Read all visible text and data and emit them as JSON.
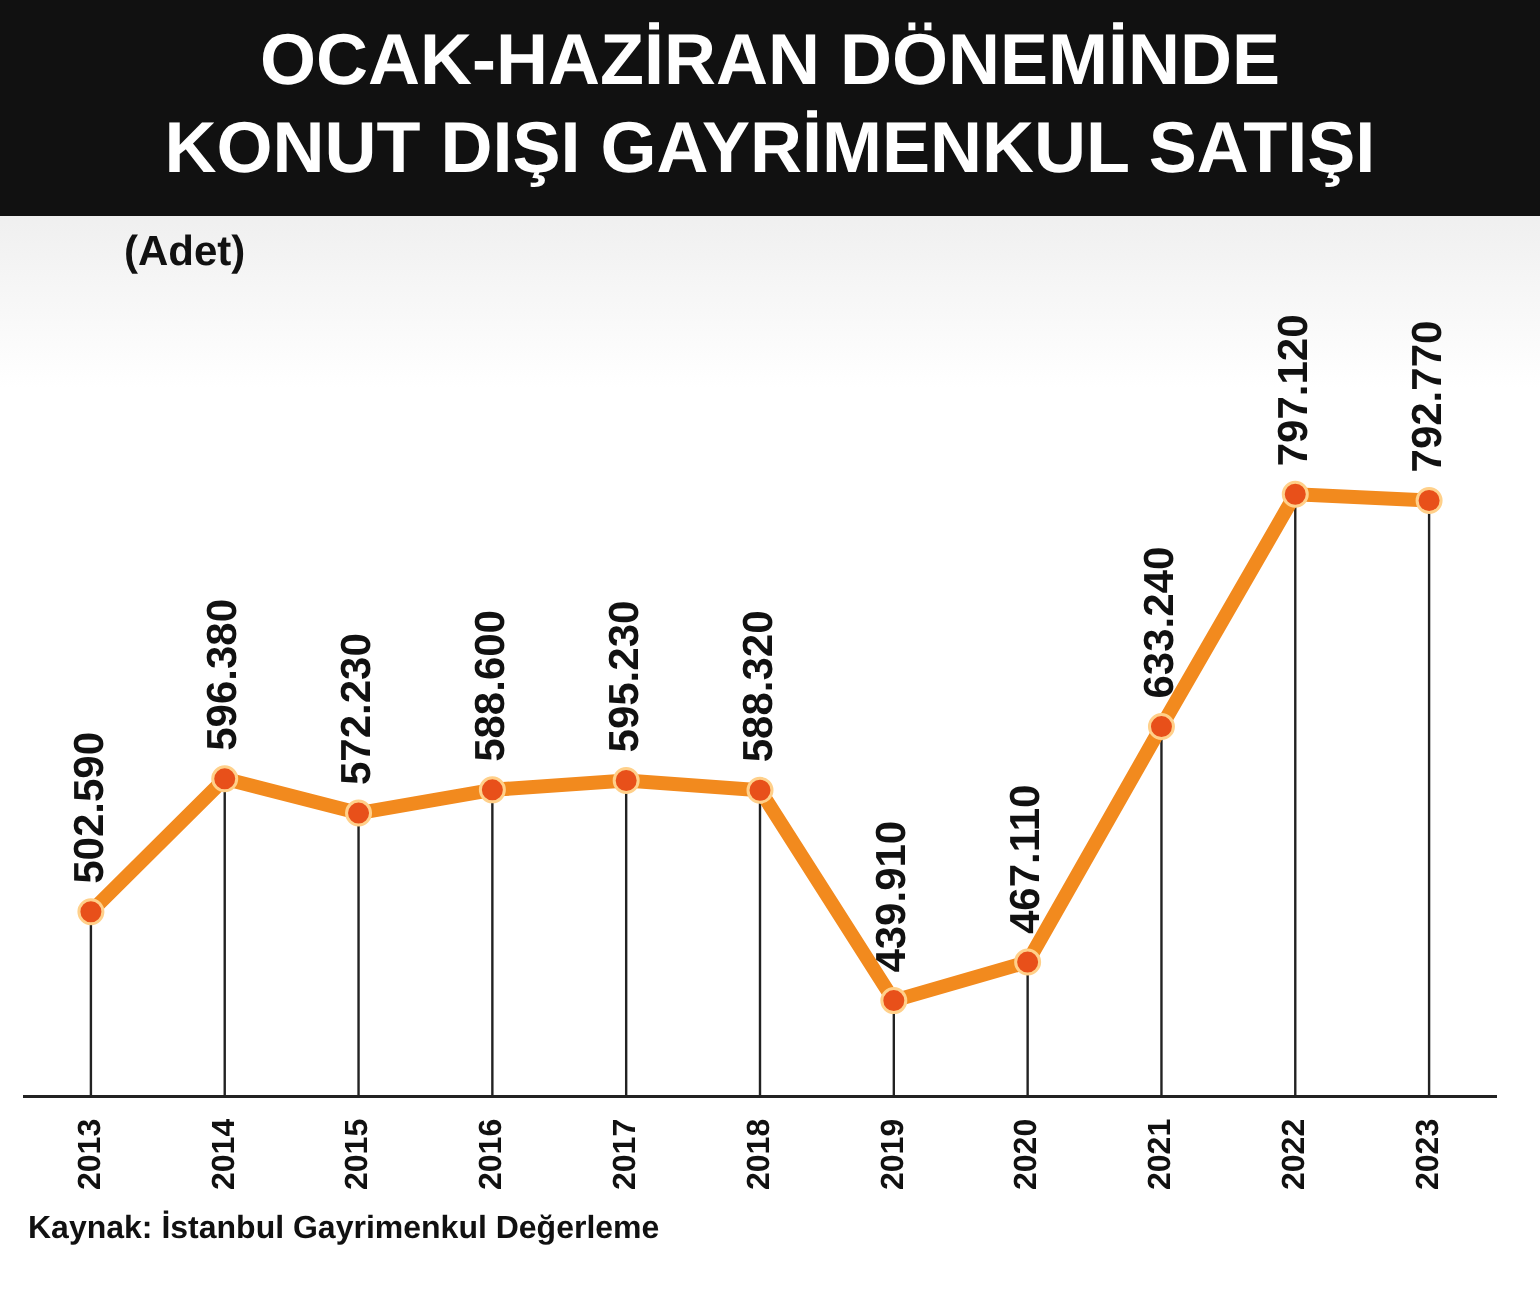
{
  "chart_data": {
    "type": "line",
    "title": "OCAK-HAZİRAN DÖNEMİNDE\nKONUT DIŞI GAYRİMENKUL SATIŞI",
    "categories": [
      "2013",
      "2014",
      "2015",
      "2016",
      "2017",
      "2018",
      "2019",
      "2020",
      "2021",
      "2022",
      "2023"
    ],
    "series": [
      {
        "color": "#f28a1e",
        "values": [
          502590,
          596380,
          572230,
          588600,
          595230,
          588320,
          439910,
          467110,
          633240,
          797120,
          792770
        ],
        "value_labels": [
          "502.590",
          "596.380",
          "572.230",
          "588.600",
          "595.230",
          "588.320",
          "439.910",
          "467.110",
          "633.240",
          "797.120",
          "792.770"
        ]
      }
    ],
    "marker": "circle",
    "grid": "x",
    "legend": false,
    "annotations": [
      "(Adet)",
      "Kaynak: İstanbul Gayrimenkul Değerleme"
    ]
  }
}
